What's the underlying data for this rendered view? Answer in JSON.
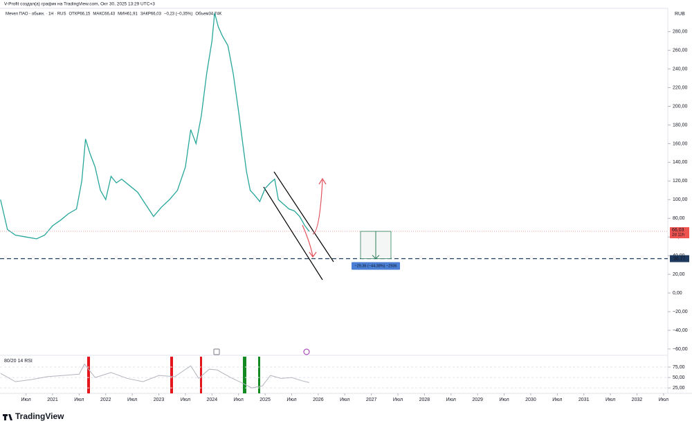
{
  "header": {
    "credit": "V-Profit создал(а) график на TradingView.com, Окт 30, 2025 13:29 UTC+3",
    "brand": "TradingView"
  },
  "chart_data": [
    {
      "type": "line",
      "legend": [
        "Мечел ПАО - обыкн. · 1Н · RUS",
        "ОТКР66,15",
        "МАКС66,43",
        "МИН61,91",
        "ЗАКР66,03",
        "−0,23 (−0,35%)",
        "Объем34,74K"
      ],
      "currency": "RUB",
      "x": [
        2020.02,
        2020.15,
        2020.3,
        2020.5,
        2020.7,
        2020.85,
        2021.0,
        2021.15,
        2021.3,
        2021.45,
        2021.55,
        2021.62,
        2021.7,
        2021.8,
        2021.9,
        2022.0,
        2022.1,
        2022.2,
        2022.3,
        2022.45,
        2022.6,
        2022.75,
        2022.9,
        2023.05,
        2023.2,
        2023.35,
        2023.5,
        2023.6,
        2023.7,
        2023.8,
        2023.9,
        2024.0,
        2024.05,
        2024.12,
        2024.2,
        2024.3,
        2024.4,
        2024.5,
        2024.58,
        2024.65,
        2024.72,
        2024.8,
        2024.9,
        2025.0,
        2025.1,
        2025.18,
        2025.25,
        2025.35,
        2025.45,
        2025.55,
        2025.65,
        2025.75,
        2025.83
      ],
      "series": [
        {
          "name": "Мечел ПАО - обыкн.",
          "color": "#26a69a",
          "values": [
            100,
            68,
            62,
            60,
            58,
            62,
            72,
            78,
            85,
            90,
            120,
            165,
            150,
            135,
            110,
            100,
            125,
            118,
            122,
            115,
            108,
            95,
            82,
            92,
            100,
            110,
            135,
            175,
            160,
            190,
            235,
            270,
            300,
            285,
            275,
            265,
            235,
            195,
            160,
            130,
            110,
            105,
            98,
            112,
            118,
            122,
            100,
            95,
            90,
            88,
            82,
            72,
            66.03
          ]
        }
      ],
      "xlim": [
        2020.01,
        2032.58
      ],
      "xticks": [
        {
          "value": 2020.5,
          "label": "Июл"
        },
        2021,
        {
          "value": 2021.5,
          "label": "Июл"
        },
        2022,
        {
          "value": 2022.5,
          "label": "Июл"
        },
        2023,
        {
          "value": 2023.5,
          "label": "Июл"
        },
        2024,
        {
          "value": 2024.5,
          "label": "Июл"
        },
        2025,
        {
          "value": 2025.5,
          "label": "Июл"
        },
        2026,
        {
          "value": 2026.5,
          "label": "Июл"
        },
        2027,
        {
          "value": 2027.5,
          "label": "Июл"
        },
        2028,
        {
          "value": 2028.5,
          "label": "Июл"
        },
        2029,
        {
          "value": 2029.5,
          "label": "Июл"
        },
        2030,
        {
          "value": 2030.5,
          "label": "Июл"
        },
        2031,
        {
          "value": 2031.5,
          "label": "Июл"
        },
        2032,
        {
          "value": 2032.5,
          "label": "Июл"
        }
      ],
      "ylim": [
        -66,
        305
      ],
      "yticks": [
        {
          "value": -60,
          "label": "−60,00"
        },
        {
          "value": -40,
          "label": "−40,00"
        },
        {
          "value": -20,
          "label": "−20,00"
        },
        {
          "value": 0,
          "label": "0,00"
        },
        {
          "value": 20,
          "label": "20,00"
        },
        {
          "value": 40,
          "label": "40,00"
        },
        {
          "value": 60,
          "label": "60,00"
        },
        {
          "value": 80,
          "label": "80,00"
        },
        {
          "value": 100,
          "label": "100,00"
        },
        {
          "value": 120,
          "label": "120,00"
        },
        {
          "value": 140,
          "label": "140,00"
        },
        {
          "value": 160,
          "label": "160,00"
        },
        {
          "value": 180,
          "label": "180,00"
        },
        {
          "value": 200,
          "label": "200,00"
        },
        {
          "value": 220,
          "label": "220,00"
        },
        {
          "value": 240,
          "label": "240,00"
        },
        {
          "value": 260,
          "label": "260,00"
        },
        {
          "value": 280,
          "label": "280,00"
        }
      ],
      "last_price": {
        "value": 66.03,
        "label": "66,03"
      },
      "countdown": "2d 11h",
      "level": {
        "value": 36.77,
        "label": "36,77"
      },
      "measure_label": "−29,36 (−44,38%) −2936"
    },
    {
      "type": "line",
      "title": "80/20 14 RSI",
      "x": [
        2020.02,
        2020.3,
        2020.6,
        2020.9,
        2021.2,
        2021.5,
        2021.6,
        2021.8,
        2022.1,
        2022.4,
        2022.7,
        2023.0,
        2023.3,
        2023.6,
        2023.75,
        2023.95,
        2024.1,
        2024.35,
        2024.55,
        2024.75,
        2024.95,
        2025.1,
        2025.3,
        2025.5,
        2025.7,
        2025.83
      ],
      "series": [
        {
          "name": "RSI",
          "color": "#b2b5be",
          "values": [
            60,
            40,
            45,
            52,
            55,
            58,
            82,
            50,
            62,
            48,
            40,
            55,
            52,
            78,
            48,
            70,
            68,
            50,
            38,
            25,
            30,
            55,
            48,
            50,
            42,
            38
          ]
        }
      ],
      "xlim": [
        2020.01,
        2032.58
      ],
      "ylim": [
        12,
        100
      ],
      "yticks": [
        {
          "value": 25,
          "label": "25,00"
        },
        {
          "value": 50,
          "label": "50,00"
        },
        {
          "value": 75,
          "label": "75,00"
        }
      ]
    }
  ]
}
